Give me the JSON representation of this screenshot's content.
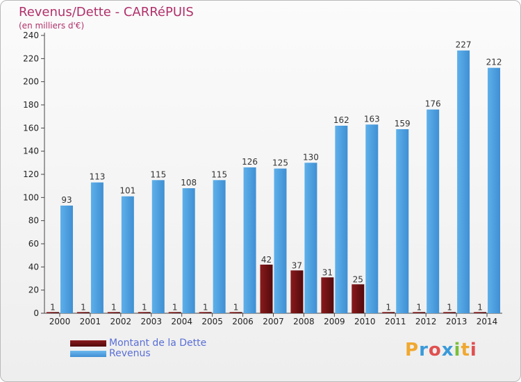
{
  "title": "Revenus/Dette - CARRéPUIS",
  "subtitle": "(en milliers d'€)",
  "logo": "Proxiti",
  "colors": {
    "dette": "#6b1012",
    "revenus": "#4fa3e3",
    "title": "#b0306a",
    "legend_text": "#5a6fd6"
  },
  "legend": [
    {
      "label": "Montant de la Dette",
      "color": "#6b1012"
    },
    {
      "label": "Revenus",
      "color": "#4fa3e3"
    }
  ],
  "chart_data": {
    "type": "bar",
    "categories": [
      "2000",
      "2001",
      "2002",
      "2003",
      "2004",
      "2005",
      "2006",
      "2007",
      "2008",
      "2009",
      "2010",
      "2011",
      "2012",
      "2013",
      "2014"
    ],
    "series": [
      {
        "name": "Montant de la Dette",
        "values": [
          1,
          1,
          1,
          1,
          1,
          1,
          1,
          42,
          37,
          31,
          25,
          1,
          1,
          1,
          1
        ]
      },
      {
        "name": "Revenus",
        "values": [
          93,
          113,
          101,
          115,
          108,
          115,
          126,
          125,
          130,
          162,
          163,
          159,
          176,
          227,
          212
        ]
      }
    ],
    "y_ticks": [
      0,
      20,
      40,
      60,
      80,
      100,
      120,
      140,
      160,
      180,
      200,
      220,
      240
    ],
    "ylim": [
      0,
      240
    ],
    "grid": false,
    "legend_position": "bottom-left"
  }
}
